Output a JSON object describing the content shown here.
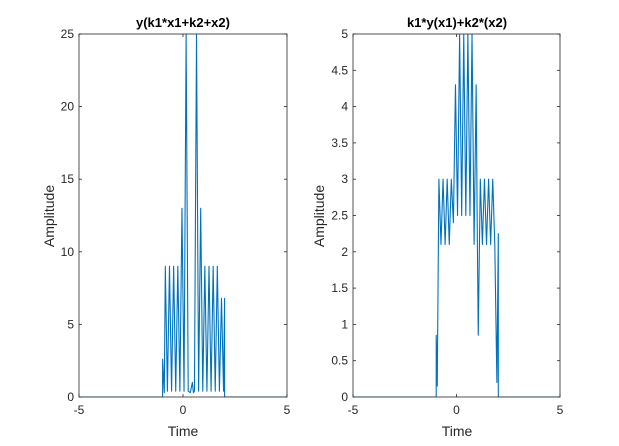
{
  "chart_data": [
    {
      "type": "line",
      "title": "y(k1*x1+k2+x2)",
      "xlabel": "Time",
      "ylabel": "Amplitude",
      "xlim": [
        -5,
        5
      ],
      "ylim": [
        0,
        25
      ],
      "xticks": [
        -5,
        0,
        5
      ],
      "yticks": [
        0,
        5,
        10,
        15,
        20,
        25
      ],
      "xtick_labels": [
        "-5",
        "0",
        "5"
      ],
      "ytick_labels": [
        "0",
        "5",
        "10",
        "15",
        "20",
        "25"
      ],
      "grid": false,
      "series": [
        {
          "color": "#0072BD",
          "x": [
            -5,
            -0.98,
            -0.98,
            -0.9,
            -0.85,
            -0.75,
            -0.65,
            -0.55,
            -0.45,
            -0.35,
            -0.25,
            -0.15,
            -0.05,
            0.05,
            0.15,
            0.25,
            0.35,
            0.45,
            0.5,
            0.55,
            0.65,
            0.75,
            0.85,
            0.95,
            1.05,
            1.15,
            1.25,
            1.35,
            1.45,
            1.55,
            1.65,
            1.75,
            1.85,
            1.95,
            2.0,
            2.0,
            5
          ],
          "y": [
            0,
            0,
            2.6,
            0.3,
            9,
            0.4,
            9,
            0.4,
            9,
            0.4,
            9,
            0.4,
            13,
            0.4,
            25,
            0.4,
            0.3,
            1.0,
            0.3,
            0.4,
            25,
            0.4,
            13,
            0.4,
            9,
            0.4,
            9,
            0.4,
            9,
            0.4,
            9,
            0.4,
            6.8,
            0.4,
            6.8,
            0,
            0
          ]
        }
      ]
    },
    {
      "type": "line",
      "title": "k1*y(x1)+k2*(x2)",
      "xlabel": "Time",
      "ylabel": "Amplitude",
      "xlim": [
        -5,
        5
      ],
      "ylim": [
        0,
        5
      ],
      "xticks": [
        -5,
        0,
        5
      ],
      "yticks": [
        0,
        0.5,
        1,
        1.5,
        2,
        2.5,
        3,
        3.5,
        4,
        4.5,
        5
      ],
      "xtick_labels": [
        "-5",
        "0",
        "5"
      ],
      "ytick_labels": [
        "0",
        "0.5",
        "1",
        "1.5",
        "2",
        "2.5",
        "3",
        "3.5",
        "4",
        "4.5",
        "5"
      ],
      "grid": false,
      "series": [
        {
          "color": "#0072BD",
          "x": [
            -5,
            -0.98,
            -0.98,
            -0.93,
            -0.85,
            -0.75,
            -0.65,
            -0.55,
            -0.45,
            -0.35,
            -0.25,
            -0.15,
            -0.05,
            0.05,
            0.15,
            0.25,
            0.35,
            0.45,
            0.55,
            0.65,
            0.75,
            0.85,
            0.95,
            1.0,
            1.05,
            1.15,
            1.25,
            1.35,
            1.45,
            1.55,
            1.65,
            1.75,
            1.85,
            1.95,
            2.02,
            2.02,
            5
          ],
          "y": [
            0,
            0,
            0.85,
            0.15,
            3,
            2.1,
            3,
            2.1,
            3,
            2.1,
            3,
            2.4,
            4.3,
            2.5,
            5,
            2.5,
            5,
            2.5,
            5,
            2.5,
            5,
            2.1,
            4.3,
            2.4,
            0.85,
            3,
            2.1,
            3,
            2.1,
            3,
            2.1,
            3,
            2.1,
            0.2,
            2.25,
            0,
            0
          ]
        }
      ]
    }
  ]
}
